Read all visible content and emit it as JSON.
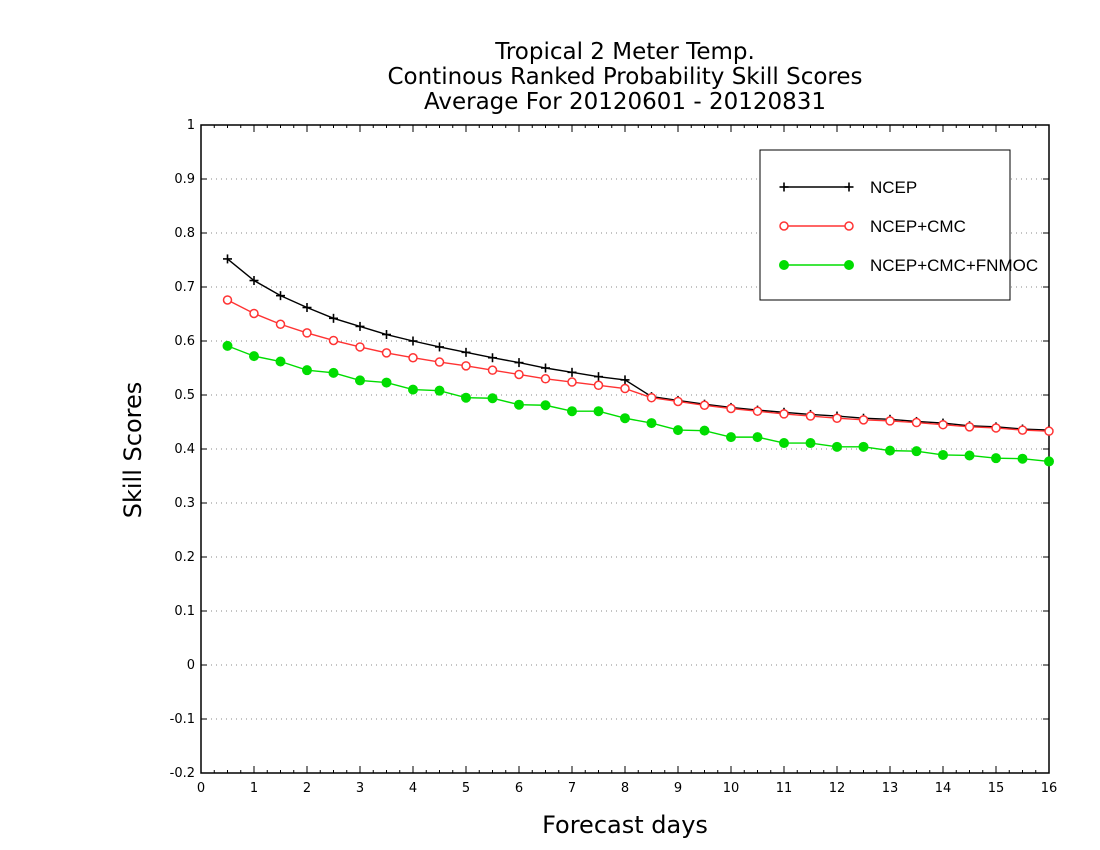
{
  "chart_data": {
    "type": "line",
    "title_lines": [
      "Tropical 2 Meter Temp.",
      "Continous Ranked Probability Skill Scores",
      "Average For 20120601 - 20120831"
    ],
    "xlabel": "Forecast days",
    "ylabel": "Skill Scores",
    "xlim": [
      0,
      16
    ],
    "ylim": [
      -0.2,
      1
    ],
    "xticks": [
      0,
      1,
      2,
      3,
      4,
      5,
      6,
      7,
      8,
      9,
      10,
      11,
      12,
      13,
      14,
      15,
      16
    ],
    "xtick_labels": [
      "0",
      "1",
      "2",
      "3",
      "4",
      "5",
      "6",
      "7",
      "8",
      "9",
      "10",
      "11",
      "12",
      "13",
      "14",
      "15",
      "16"
    ],
    "yticks": [
      -0.2,
      -0.1,
      0,
      0.1,
      0.2,
      0.3,
      0.4,
      0.5,
      0.6,
      0.7,
      0.8,
      0.9,
      1
    ],
    "ytick_labels": [
      "-0.2",
      "-0.1",
      "0",
      "0.1",
      "0.2",
      "0.3",
      "0.4",
      "0.5",
      "0.6",
      "0.7",
      "0.8",
      "0.9",
      "1"
    ],
    "grid": "horizontal dotted",
    "legend_position": "top-right",
    "x": [
      0.5,
      1,
      1.5,
      2,
      2.5,
      3,
      3.5,
      4,
      4.5,
      5,
      5.5,
      6,
      6.5,
      7,
      7.5,
      8,
      8.5,
      9,
      9.5,
      10,
      10.5,
      11,
      11.5,
      12,
      12.5,
      13,
      13.5,
      14,
      14.5,
      15,
      15.5,
      16
    ],
    "series": [
      {
        "name": "NCEP",
        "color": "#000000",
        "marker": "plus",
        "values": [
          0.752,
          0.712,
          0.684,
          0.662,
          0.642,
          0.627,
          0.612,
          0.6,
          0.589,
          0.579,
          0.569,
          0.56,
          0.55,
          0.542,
          0.534,
          0.528,
          0.497,
          0.49,
          0.483,
          0.477,
          0.472,
          0.468,
          0.464,
          0.461,
          0.457,
          0.455,
          0.451,
          0.448,
          0.443,
          0.441,
          0.437,
          0.435
        ]
      },
      {
        "name": "NCEP+CMC",
        "color": "#ff3333",
        "marker": "open-circle",
        "values": [
          0.676,
          0.651,
          0.631,
          0.615,
          0.601,
          0.589,
          0.578,
          0.569,
          0.561,
          0.554,
          0.546,
          0.538,
          0.53,
          0.524,
          0.518,
          0.512,
          0.495,
          0.488,
          0.481,
          0.475,
          0.47,
          0.465,
          0.461,
          0.457,
          0.454,
          0.452,
          0.449,
          0.445,
          0.441,
          0.439,
          0.435,
          0.433
        ]
      },
      {
        "name": "NCEP+CMC+FNMOC",
        "color": "#00dd00",
        "marker": "filled-circle",
        "values": [
          0.591,
          0.572,
          0.562,
          0.546,
          0.541,
          0.527,
          0.523,
          0.51,
          0.508,
          0.495,
          0.494,
          0.482,
          0.481,
          0.47,
          0.47,
          0.457,
          0.448,
          0.435,
          0.434,
          0.422,
          0.422,
          0.411,
          0.411,
          0.404,
          0.404,
          0.397,
          0.396,
          0.389,
          0.388,
          0.383,
          0.382,
          0.377
        ]
      }
    ]
  }
}
